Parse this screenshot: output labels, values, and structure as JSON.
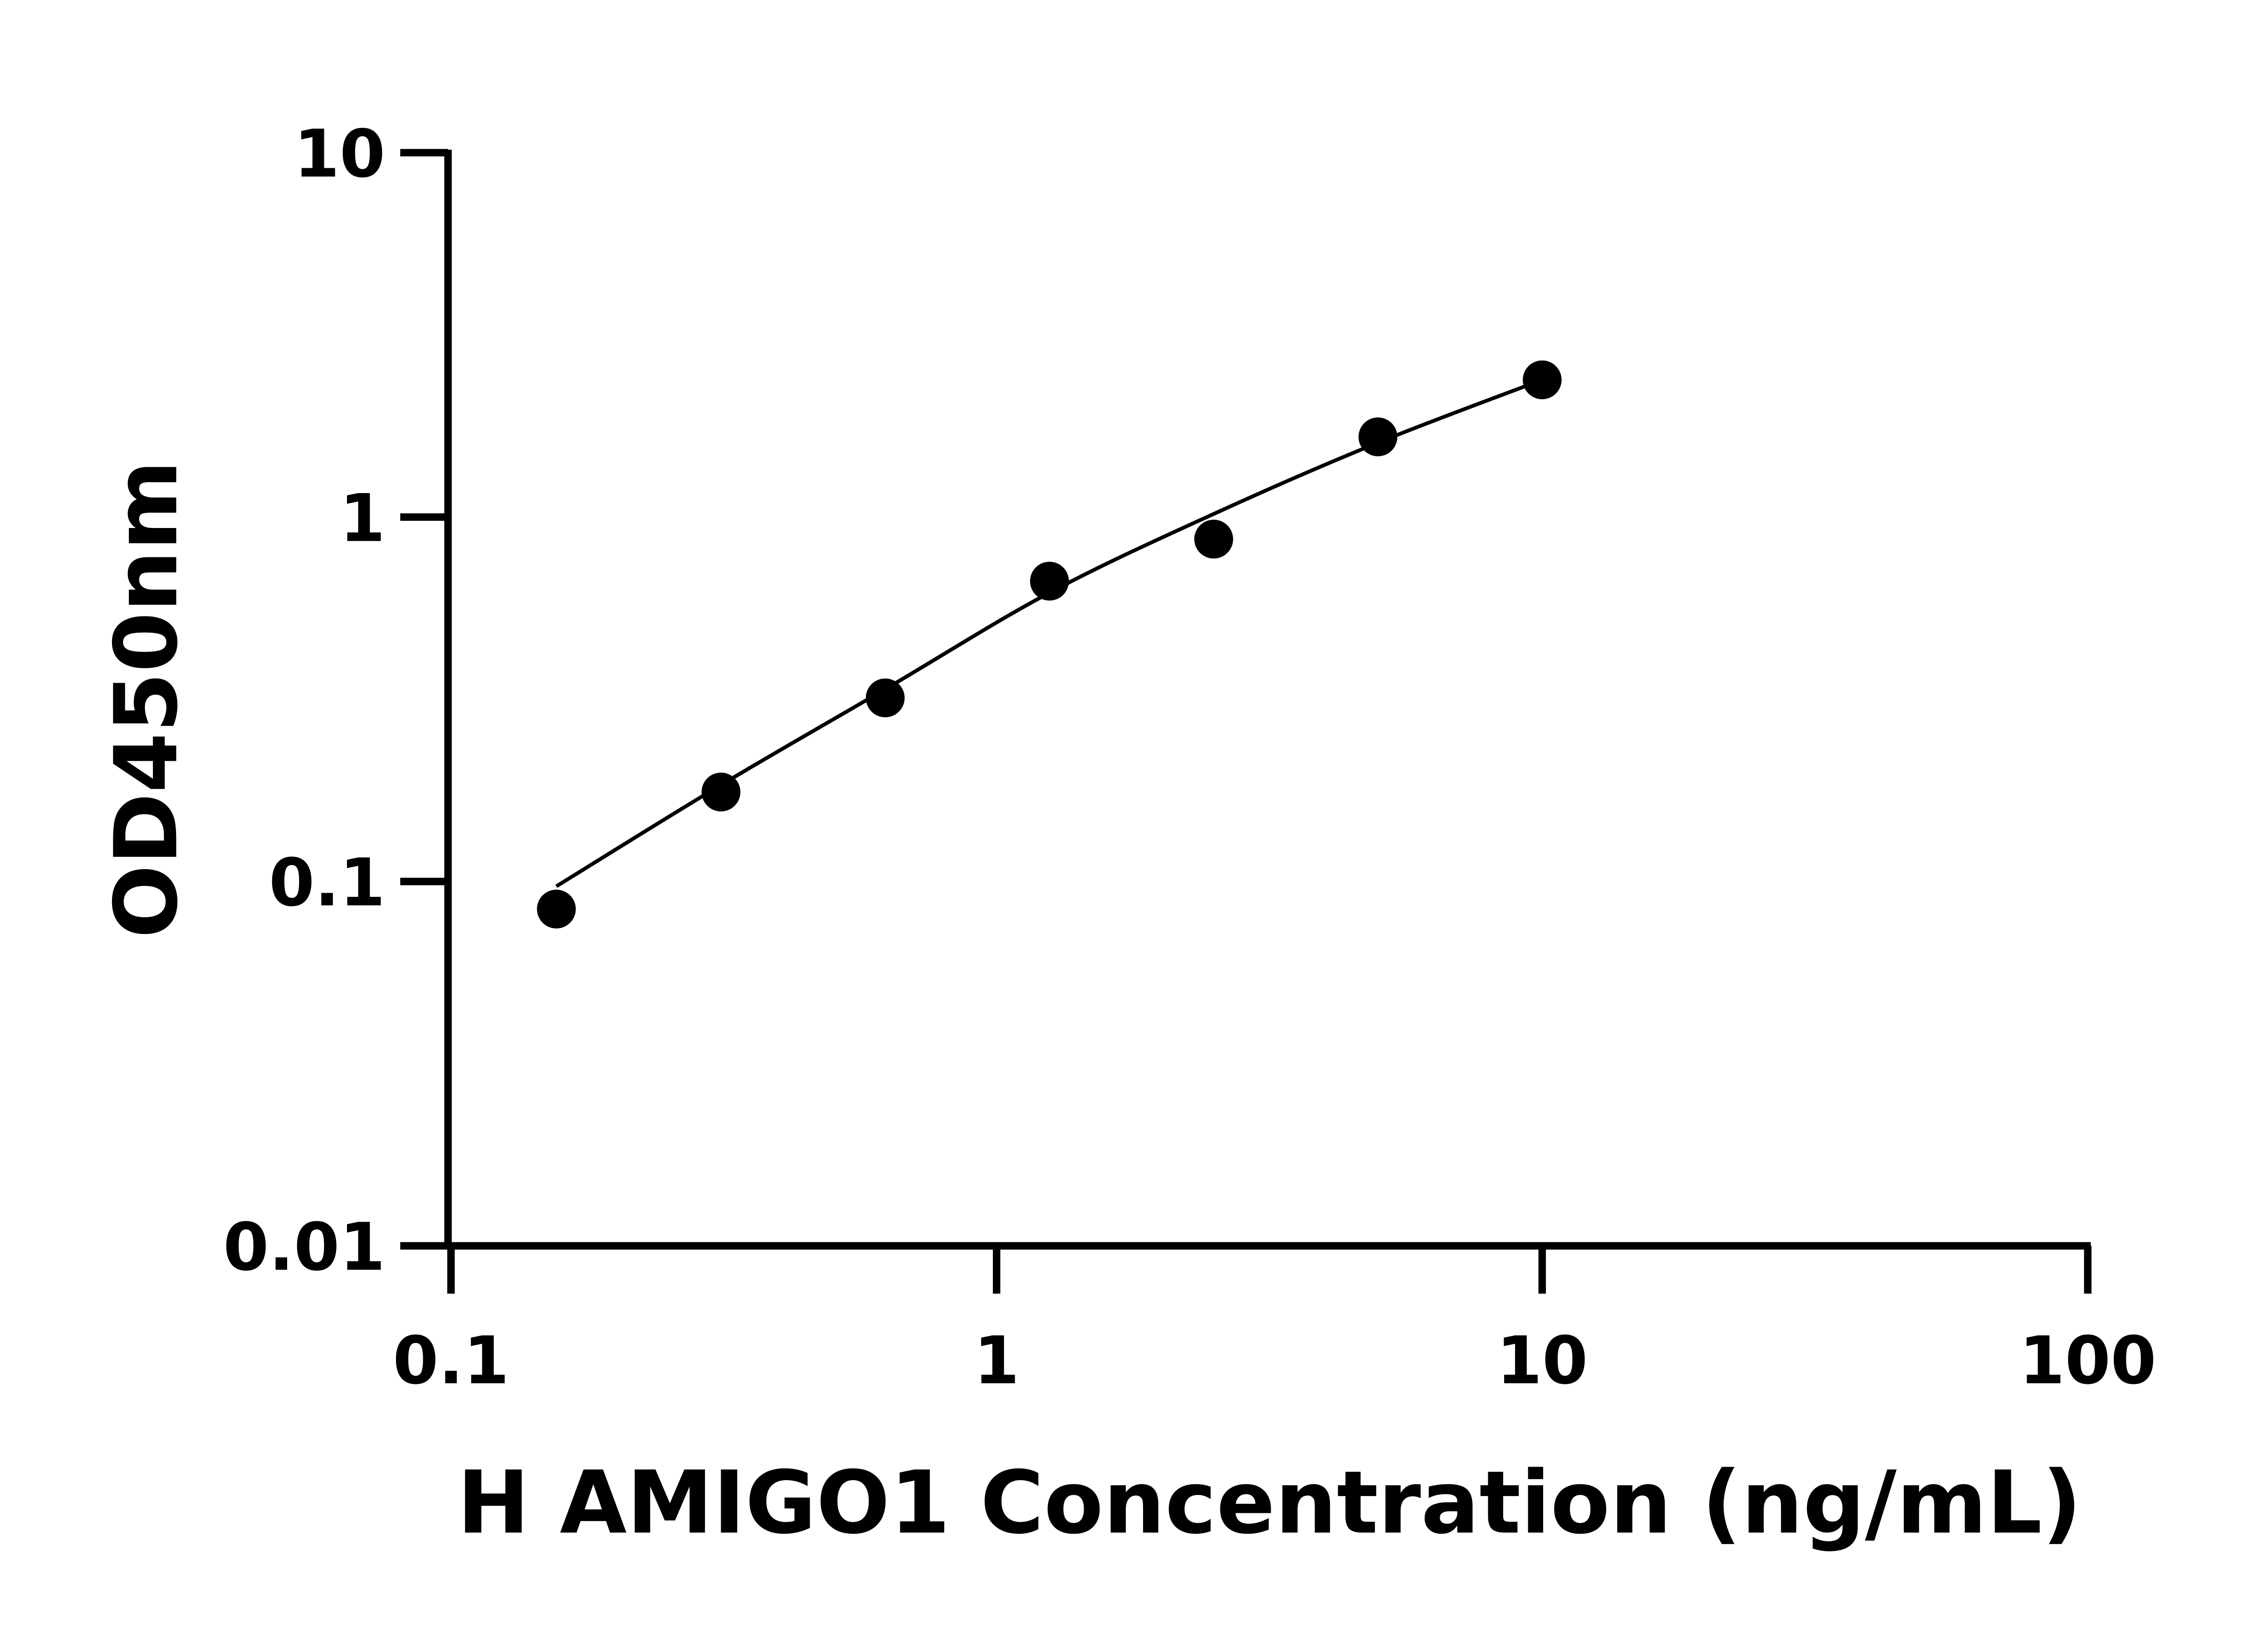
{
  "chart_data": {
    "type": "scatter",
    "title": "",
    "xlabel": "H AMIGO1 Concentration (ng/mL)",
    "ylabel": "OD450nm",
    "x_scale": "log",
    "y_scale": "log",
    "xlim": [
      0.1,
      100
    ],
    "ylim": [
      0.01,
      10
    ],
    "x_ticks": [
      "0.1",
      "1",
      "10",
      "100"
    ],
    "y_ticks": [
      "0.01",
      "0.1",
      "1",
      "10"
    ],
    "grid": false,
    "legend": "none",
    "marker_color": "#000000",
    "points": [
      {
        "x": 0.156,
        "y": 0.084
      },
      {
        "x": 0.3125,
        "y": 0.176
      },
      {
        "x": 0.625,
        "y": 0.319
      },
      {
        "x": 1.25,
        "y": 0.667
      },
      {
        "x": 2.5,
        "y": 0.87
      },
      {
        "x": 5,
        "y": 1.66
      },
      {
        "x": 10,
        "y": 2.38
      }
    ],
    "fit_curve": [
      {
        "x": 0.156,
        "y": 0.097
      },
      {
        "x": 0.3125,
        "y": 0.184
      },
      {
        "x": 0.625,
        "y": 0.337
      },
      {
        "x": 1.25,
        "y": 0.62
      },
      {
        "x": 2.5,
        "y": 1.02
      },
      {
        "x": 5,
        "y": 1.6
      },
      {
        "x": 10,
        "y": 2.38
      }
    ]
  }
}
